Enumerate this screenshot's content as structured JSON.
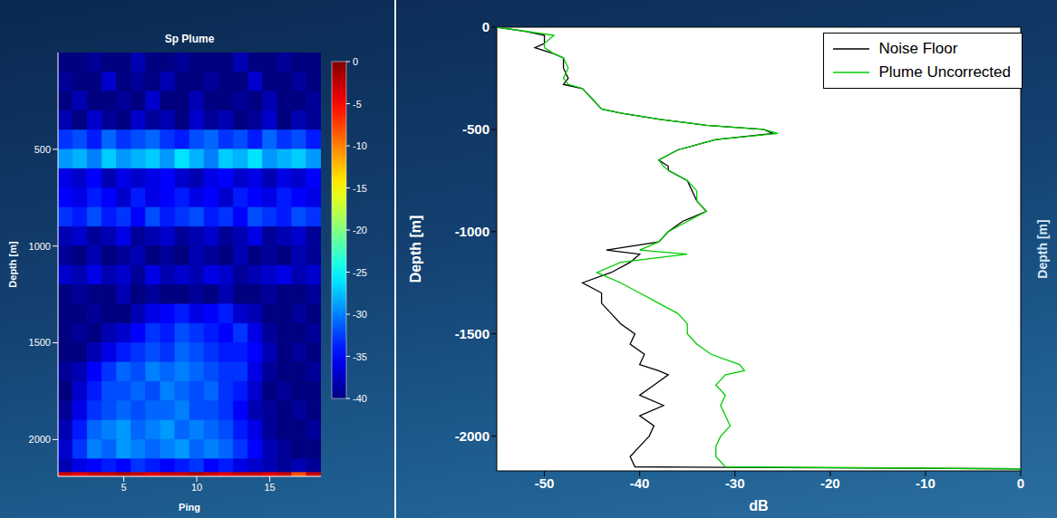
{
  "chart_data": [
    {
      "type": "heatmap",
      "title": "Sp Plume",
      "x_label": "Ping",
      "y_label": "Depth [m]",
      "x": [
        1,
        2,
        3,
        4,
        5,
        6,
        7,
        8,
        9,
        10,
        11,
        12,
        13,
        14,
        15,
        16,
        17,
        18
      ],
      "y_edges": [
        0,
        100,
        200,
        300,
        400,
        500,
        600,
        700,
        800,
        900,
        1000,
        1100,
        1200,
        1300,
        1400,
        1500,
        1600,
        1700,
        1800,
        1900,
        2000,
        2100,
        2170,
        2190
      ],
      "xlim": [
        0.5,
        18.5
      ],
      "ylim": [
        2190,
        0
      ],
      "xticks": [
        5,
        10,
        15
      ],
      "yticks": [
        500,
        1000,
        1500,
        2000
      ],
      "grid": false,
      "cells": [
        [
          -40,
          -40,
          -39,
          -40,
          -40,
          -38,
          -40,
          -40,
          -39,
          -40,
          -40,
          -40,
          -38,
          -40,
          -40,
          -39,
          -40,
          -40
        ],
        [
          -39,
          -40,
          -40,
          -37,
          -40,
          -39,
          -40,
          -38,
          -40,
          -40,
          -39,
          -40,
          -40,
          -37,
          -40,
          -40,
          -39,
          -40
        ],
        [
          -40,
          -38,
          -40,
          -40,
          -39,
          -40,
          -37,
          -40,
          -40,
          -38,
          -40,
          -40,
          -39,
          -40,
          -38,
          -40,
          -40,
          -39
        ],
        [
          -38,
          -40,
          -37,
          -39,
          -40,
          -37,
          -39,
          -38,
          -40,
          -37,
          -39,
          -38,
          -40,
          -39,
          -37,
          -40,
          -38,
          -39
        ],
        [
          -33,
          -32,
          -34,
          -31,
          -33,
          -32,
          -31,
          -33,
          -34,
          -32,
          -31,
          -33,
          -32,
          -34,
          -31,
          -33,
          -32,
          -34
        ],
        [
          -29,
          -28,
          -30,
          -27,
          -29,
          -28,
          -27,
          -29,
          -26,
          -28,
          -30,
          -27,
          -28,
          -26,
          -29,
          -28,
          -27,
          -29
        ],
        [
          -36,
          -37,
          -35,
          -38,
          -36,
          -37,
          -36,
          -35,
          -37,
          -38,
          -36,
          -35,
          -37,
          -36,
          -38,
          -36,
          -37,
          -35
        ],
        [
          -35,
          -36,
          -34,
          -35,
          -37,
          -34,
          -36,
          -35,
          -34,
          -36,
          -35,
          -37,
          -34,
          -35,
          -36,
          -34,
          -35,
          -36
        ],
        [
          -33,
          -34,
          -32,
          -34,
          -33,
          -35,
          -32,
          -34,
          -33,
          -32,
          -34,
          -33,
          -35,
          -32,
          -33,
          -34,
          -32,
          -33
        ],
        [
          -38,
          -37,
          -39,
          -38,
          -36,
          -39,
          -38,
          -37,
          -39,
          -38,
          -37,
          -39,
          -38,
          -36,
          -39,
          -38,
          -37,
          -39
        ],
        [
          -39,
          -40,
          -38,
          -40,
          -39,
          -38,
          -40,
          -39,
          -40,
          -38,
          -39,
          -40,
          -38,
          -40,
          -39,
          -40,
          -38,
          -39
        ],
        [
          -37,
          -38,
          -36,
          -38,
          -37,
          -39,
          -36,
          -38,
          -37,
          -38,
          -36,
          -37,
          -39,
          -38,
          -37,
          -36,
          -38,
          -37
        ],
        [
          -40,
          -39,
          -40,
          -40,
          -38,
          -40,
          -39,
          -40,
          -40,
          -39,
          -40,
          -38,
          -40,
          -40,
          -39,
          -40,
          -40,
          -39
        ],
        [
          -40,
          -40,
          -39,
          -40,
          -40,
          -38,
          -36,
          -35,
          -34,
          -36,
          -35,
          -34,
          -37,
          -38,
          -40,
          -40,
          -39,
          -40
        ],
        [
          -40,
          -39,
          -40,
          -38,
          -37,
          -35,
          -33,
          -34,
          -32,
          -33,
          -34,
          -35,
          -33,
          -36,
          -39,
          -40,
          -40,
          -39
        ],
        [
          -40,
          -40,
          -38,
          -36,
          -34,
          -33,
          -32,
          -33,
          -31,
          -32,
          -33,
          -34,
          -34,
          -35,
          -38,
          -40,
          -39,
          -40
        ],
        [
          -39,
          -38,
          -35,
          -33,
          -31,
          -32,
          -30,
          -31,
          -30,
          -31,
          -32,
          -33,
          -33,
          -36,
          -39,
          -40,
          -40,
          -39
        ],
        [
          -40,
          -37,
          -34,
          -32,
          -32,
          -31,
          -32,
          -30,
          -31,
          -32,
          -31,
          -33,
          -34,
          -37,
          -40,
          -39,
          -40,
          -40
        ],
        [
          -39,
          -36,
          -33,
          -32,
          -31,
          -32,
          -31,
          -31,
          -30,
          -32,
          -32,
          -33,
          -35,
          -38,
          -39,
          -40,
          -39,
          -40
        ],
        [
          -38,
          -34,
          -31,
          -30,
          -29,
          -31,
          -30,
          -29,
          -31,
          -30,
          -31,
          -32,
          -34,
          -36,
          -39,
          -40,
          -40,
          -39
        ],
        [
          -37,
          -33,
          -30,
          -31,
          -29,
          -30,
          -31,
          -30,
          -29,
          -31,
          -30,
          -31,
          -33,
          -35,
          -38,
          -39,
          -40,
          -40
        ],
        [
          -38,
          -36,
          -35,
          -34,
          -35,
          -33,
          -34,
          -35,
          -34,
          -33,
          -35,
          -34,
          -36,
          -37,
          -38,
          -39,
          -38,
          -39
        ],
        [
          -3,
          -4,
          -3,
          -3,
          -2,
          -3,
          -4,
          -3,
          -3,
          -2,
          -3,
          -4,
          -3,
          -3,
          -4,
          -3,
          -8,
          -3
        ]
      ],
      "colorbar": {
        "range": [
          -40,
          0
        ],
        "ticks": [
          0,
          -5,
          -10,
          -15,
          -20,
          -25,
          -30,
          -35,
          -40
        ]
      }
    },
    {
      "type": "line",
      "x_label": "dB",
      "y_label": "Depth [m]",
      "y2_label": "Depth [m]",
      "xlim": [
        -55,
        0
      ],
      "ylim": [
        -2170,
        0
      ],
      "xticks": [
        -50,
        -40,
        -30,
        -20,
        -10,
        0
      ],
      "yticks": [
        -2000,
        -1500,
        -1000,
        -500,
        0
      ],
      "grid": false,
      "legend": "upper right",
      "y": [
        0,
        -20,
        -40,
        -80,
        -100,
        -130,
        -150,
        -200,
        -250,
        -280,
        -300,
        -350,
        -400,
        -420,
        -450,
        -480,
        -500,
        -520,
        -550,
        -600,
        -650,
        -680,
        -700,
        -750,
        -800,
        -850,
        -900,
        -950,
        -1000,
        -1050,
        -1090,
        -1110,
        -1150,
        -1200,
        -1250,
        -1300,
        -1350,
        -1400,
        -1450,
        -1500,
        -1550,
        -1600,
        -1650,
        -1680,
        -1700,
        -1750,
        -1800,
        -1850,
        -1900,
        -1950,
        -2000,
        -2050,
        -2100,
        -2150,
        -2160
      ],
      "series": [
        {
          "name": "Noise Floor",
          "color": "#000000",
          "values": [
            -55,
            -52,
            -50,
            -50,
            -51,
            -49,
            -48,
            -48,
            -47.5,
            -48,
            -46,
            -45,
            -44,
            -42,
            -38,
            -33,
            -27,
            -26,
            -32,
            -36,
            -38,
            -37,
            -37,
            -35,
            -34.5,
            -34,
            -33,
            -35.5,
            -37,
            -38,
            -43.5,
            -40,
            -41,
            -43,
            -46,
            -44,
            -44,
            -43,
            -42,
            -40.5,
            -41,
            -39.5,
            -40,
            -38,
            -37,
            -38.5,
            -40,
            -37.5,
            -40,
            -38.5,
            -39,
            -40,
            -41,
            -40.5,
            0
          ]
        },
        {
          "name": "Plume Uncorrected",
          "color": "#00cc00",
          "values": [
            -55,
            -52,
            -49,
            -50,
            -50,
            -49,
            -48,
            -47.5,
            -48,
            -47.5,
            -46,
            -45,
            -44,
            -42,
            -38,
            -33,
            -27,
            -25.5,
            -32,
            -36,
            -38,
            -37.5,
            -37,
            -35,
            -34,
            -34,
            -33,
            -35,
            -37,
            -38,
            -40,
            -35,
            -42,
            -44.5,
            -42,
            -40,
            -38,
            -36,
            -35,
            -35,
            -34,
            -32.5,
            -29.5,
            -29,
            -31,
            -32,
            -31,
            -31.5,
            -31,
            -30.5,
            -31.5,
            -32,
            -32,
            -31,
            0
          ]
        }
      ]
    }
  ]
}
